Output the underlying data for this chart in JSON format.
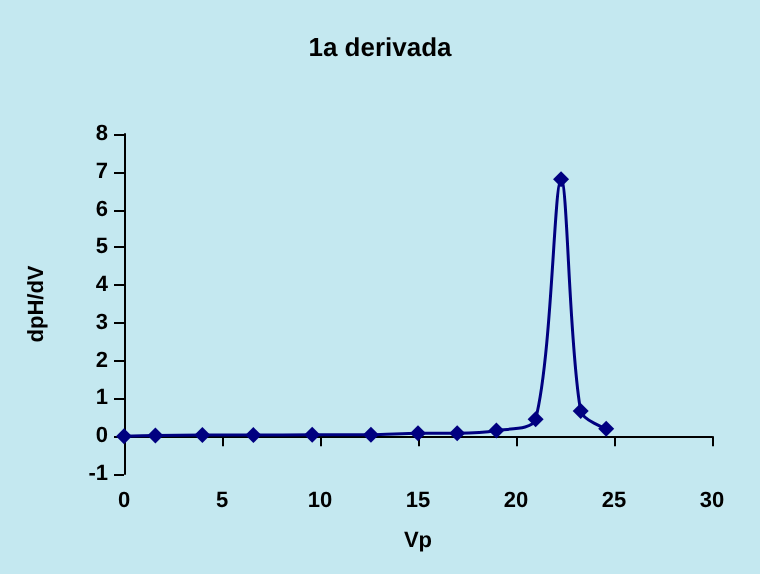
{
  "chart_data": {
    "type": "line",
    "title": "1a derivada",
    "xlabel": "Vp",
    "ylabel": "dpH/dV",
    "x": [
      0,
      1.6,
      4,
      6.6,
      9.6,
      12.6,
      15,
      17,
      19,
      21,
      22.3,
      23.3,
      24.6
    ],
    "series": [
      {
        "color": "#000080",
        "values": [
          0,
          0.02,
          0.03,
          0.03,
          0.04,
          0.04,
          0.08,
          0.08,
          0.15,
          0.45,
          6.8,
          0.67,
          0.2
        ]
      }
    ],
    "xlim": [
      0,
      30
    ],
    "xticks": [
      0,
      5,
      10,
      15,
      20,
      25,
      30
    ],
    "ylim": [
      -1,
      8
    ],
    "yticks": [
      -1,
      0,
      1,
      2,
      3,
      4,
      5,
      6,
      7,
      8
    ],
    "grid": false,
    "marker": "diamond",
    "line_style": "solid"
  }
}
